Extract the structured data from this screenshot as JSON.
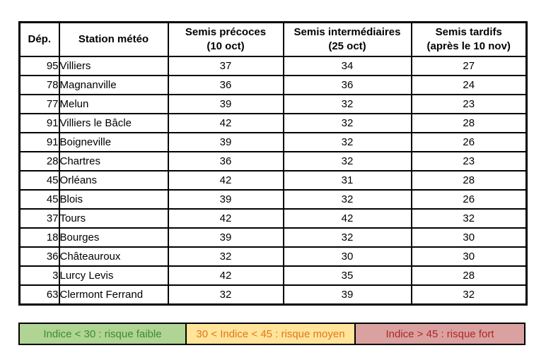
{
  "table": {
    "columns": [
      {
        "label": "Dép."
      },
      {
        "label": "Station météo"
      },
      {
        "label": "Semis précoces",
        "sublabel": "(10 oct)"
      },
      {
        "label": "Semis intermédiaires",
        "sublabel": "(25 oct)"
      },
      {
        "label": "Semis tardifs",
        "sublabel": "(après le 10 nov)"
      }
    ],
    "rows": [
      {
        "dep": "95",
        "station": "Villiers",
        "precoces": {
          "value": "37",
          "style": "orange"
        },
        "intermediaires": {
          "value": "34",
          "style": "orange"
        },
        "tardifs": {
          "value": "27",
          "style": "green"
        }
      },
      {
        "dep": "78",
        "station": "Magnanville",
        "precoces": {
          "value": "36",
          "style": "orange"
        },
        "intermediaires": {
          "value": "36",
          "style": "orange"
        },
        "tardifs": {
          "value": "24",
          "style": "green"
        }
      },
      {
        "dep": "77",
        "station": "Melun",
        "precoces": {
          "value": "39",
          "style": "orange"
        },
        "intermediaires": {
          "value": "32",
          "style": "orange"
        },
        "tardifs": {
          "value": "23",
          "style": "green"
        }
      },
      {
        "dep": "91",
        "station": "Villiers le Bâcle",
        "precoces": {
          "value": "42",
          "style": "red"
        },
        "intermediaires": {
          "value": "32",
          "style": "orange"
        },
        "tardifs": {
          "value": "28",
          "style": "green"
        }
      },
      {
        "dep": "91",
        "station": "Boigneville",
        "precoces": {
          "value": "39",
          "style": "orange"
        },
        "intermediaires": {
          "value": "32",
          "style": "orange"
        },
        "tardifs": {
          "value": "26",
          "style": "green"
        }
      },
      {
        "dep": "28",
        "station": "Chartres",
        "precoces": {
          "value": "36",
          "style": "orange"
        },
        "intermediaires": {
          "value": "32",
          "style": "orange"
        },
        "tardifs": {
          "value": "23",
          "style": "green"
        }
      },
      {
        "dep": "45",
        "station": "Orléans",
        "precoces": {
          "value": "42",
          "style": "red"
        },
        "intermediaires": {
          "value": "31",
          "style": "orange"
        },
        "tardifs": {
          "value": "28",
          "style": "green"
        }
      },
      {
        "dep": "45",
        "station": "Blois",
        "precoces": {
          "value": "39",
          "style": "orange"
        },
        "intermediaires": {
          "value": "32",
          "style": "orange"
        },
        "tardifs": {
          "value": "26",
          "style": "green"
        }
      },
      {
        "dep": "37",
        "station": "Tours",
        "precoces": {
          "value": "42",
          "style": "red"
        },
        "intermediaires": {
          "value": "42",
          "style": "red"
        },
        "tardifs": {
          "value": "32",
          "style": "orange"
        }
      },
      {
        "dep": "18",
        "station": "Bourges",
        "precoces": {
          "value": "39",
          "style": "orange"
        },
        "intermediaires": {
          "value": "32",
          "style": "orange"
        },
        "tardifs": {
          "value": "30",
          "style": "orange"
        }
      },
      {
        "dep": "36",
        "station": "Châteauroux",
        "precoces": {
          "value": "32",
          "style": "orange"
        },
        "intermediaires": {
          "value": "30",
          "style": "orange"
        },
        "tardifs": {
          "value": "30",
          "style": "orange"
        }
      },
      {
        "dep": "3",
        "station": "Lurcy Levis",
        "precoces": {
          "value": "42",
          "style": "red"
        },
        "intermediaires": {
          "value": "35",
          "style": "orange"
        },
        "tardifs": {
          "value": "28",
          "style": "green"
        }
      },
      {
        "dep": "63",
        "station": "Clermont Ferrand",
        "precoces": {
          "value": "32",
          "style": "orange"
        },
        "intermediaires": {
          "value": "39",
          "style": "orange"
        },
        "tardifs": {
          "value": "32",
          "style": "orange"
        }
      }
    ]
  },
  "legend": [
    {
      "label": "Indice < 30 : risque faible",
      "level": "faible"
    },
    {
      "label": "30 < Indice < 45 : risque moyen",
      "level": "moyen"
    },
    {
      "label": "Indice > 45 : risque fort",
      "level": "fort"
    }
  ],
  "colors": {
    "border": "#000000",
    "cell_yellow_bg": "#FFE499",
    "cell_green_bg": "#C8E2B8",
    "text_orange": "#E2761B",
    "text_red": "#FF0000",
    "text_green": "#3C8C2F",
    "legend_green_bg": "#B0D494",
    "legend_yellow_bg": "#FFE499",
    "legend_pink_bg": "#D9A2A1",
    "legend_red_text": "#B32427"
  }
}
